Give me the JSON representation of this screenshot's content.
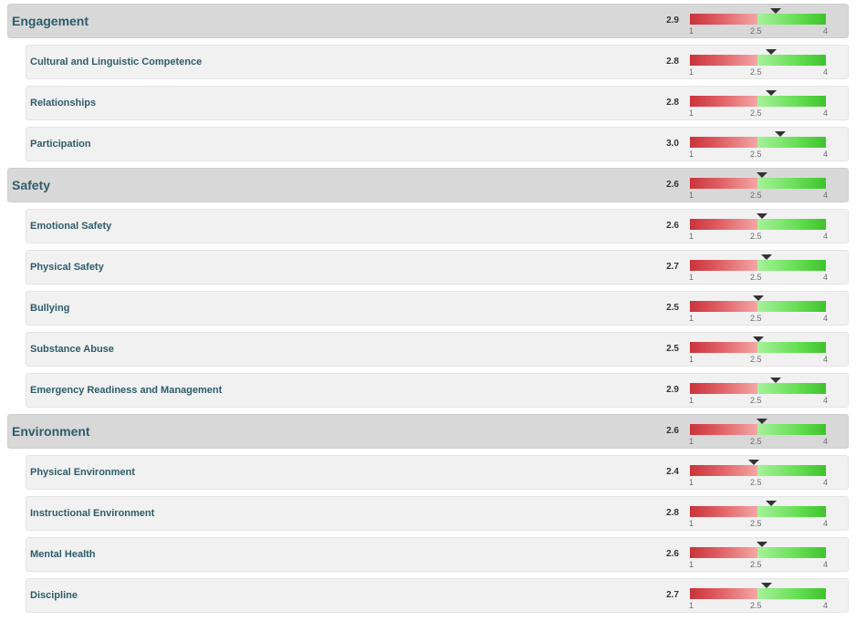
{
  "scale": {
    "min": 1,
    "mid": 2.5,
    "max": 4,
    "min_label": "1",
    "mid_label": "2.5",
    "max_label": "4"
  },
  "colors": {
    "category_label": "#2d5c6a",
    "low_band": "#c9343a",
    "high_band": "#3ec42c",
    "marker": "#333333"
  },
  "icons": {
    "marker": "triangle-down-marker-icon"
  },
  "rows": [
    {
      "type": "category",
      "label": "Engagement",
      "score_text": "2.9",
      "score": 2.9
    },
    {
      "type": "item",
      "label": "Cultural and Linguistic Competence",
      "score_text": "2.8",
      "score": 2.8
    },
    {
      "type": "item",
      "label": "Relationships",
      "score_text": "2.8",
      "score": 2.8
    },
    {
      "type": "item",
      "label": "Participation",
      "score_text": "3.0",
      "score": 3.0
    },
    {
      "type": "category",
      "label": "Safety",
      "score_text": "2.6",
      "score": 2.6
    },
    {
      "type": "item",
      "label": "Emotional Safety",
      "score_text": "2.6",
      "score": 2.6
    },
    {
      "type": "item",
      "label": "Physical Safety",
      "score_text": "2.7",
      "score": 2.7
    },
    {
      "type": "item",
      "label": "Bullying",
      "score_text": "2.5",
      "score": 2.5
    },
    {
      "type": "item",
      "label": "Substance Abuse",
      "score_text": "2.5",
      "score": 2.5
    },
    {
      "type": "item",
      "label": "Emergency Readiness and Management",
      "score_text": "2.9",
      "score": 2.9
    },
    {
      "type": "category",
      "label": "Environment",
      "score_text": "2.6",
      "score": 2.6
    },
    {
      "type": "item",
      "label": "Physical Environment",
      "score_text": "2.4",
      "score": 2.4
    },
    {
      "type": "item",
      "label": "Instructional Environment",
      "score_text": "2.8",
      "score": 2.8
    },
    {
      "type": "item",
      "label": "Mental Health",
      "score_text": "2.6",
      "score": 2.6
    },
    {
      "type": "item",
      "label": "Discipline",
      "score_text": "2.7",
      "score": 2.7
    }
  ]
}
